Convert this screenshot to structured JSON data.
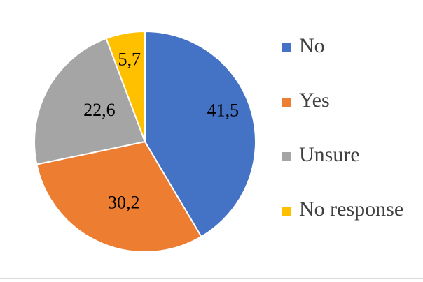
{
  "chart_data": {
    "type": "pie",
    "title": "",
    "categories": [
      "No",
      "Yes",
      "Unsure",
      "No response"
    ],
    "values": [
      41.5,
      30.2,
      22.6,
      5.7
    ],
    "data_labels": [
      "41,5",
      "30,2",
      "22,6",
      "5,7"
    ],
    "colors": [
      "#4472c4",
      "#ed7d31",
      "#a5a5a5",
      "#ffc000"
    ],
    "start_angle_deg": 0,
    "direction": "clockwise",
    "legend_position": "right",
    "legend": [
      {
        "label": "No",
        "color": "#4472c4"
      },
      {
        "label": "Yes",
        "color": "#ed7d31"
      },
      {
        "label": "Unsure",
        "color": "#a5a5a5"
      },
      {
        "label": "No response",
        "color": "#ffc000"
      }
    ]
  }
}
